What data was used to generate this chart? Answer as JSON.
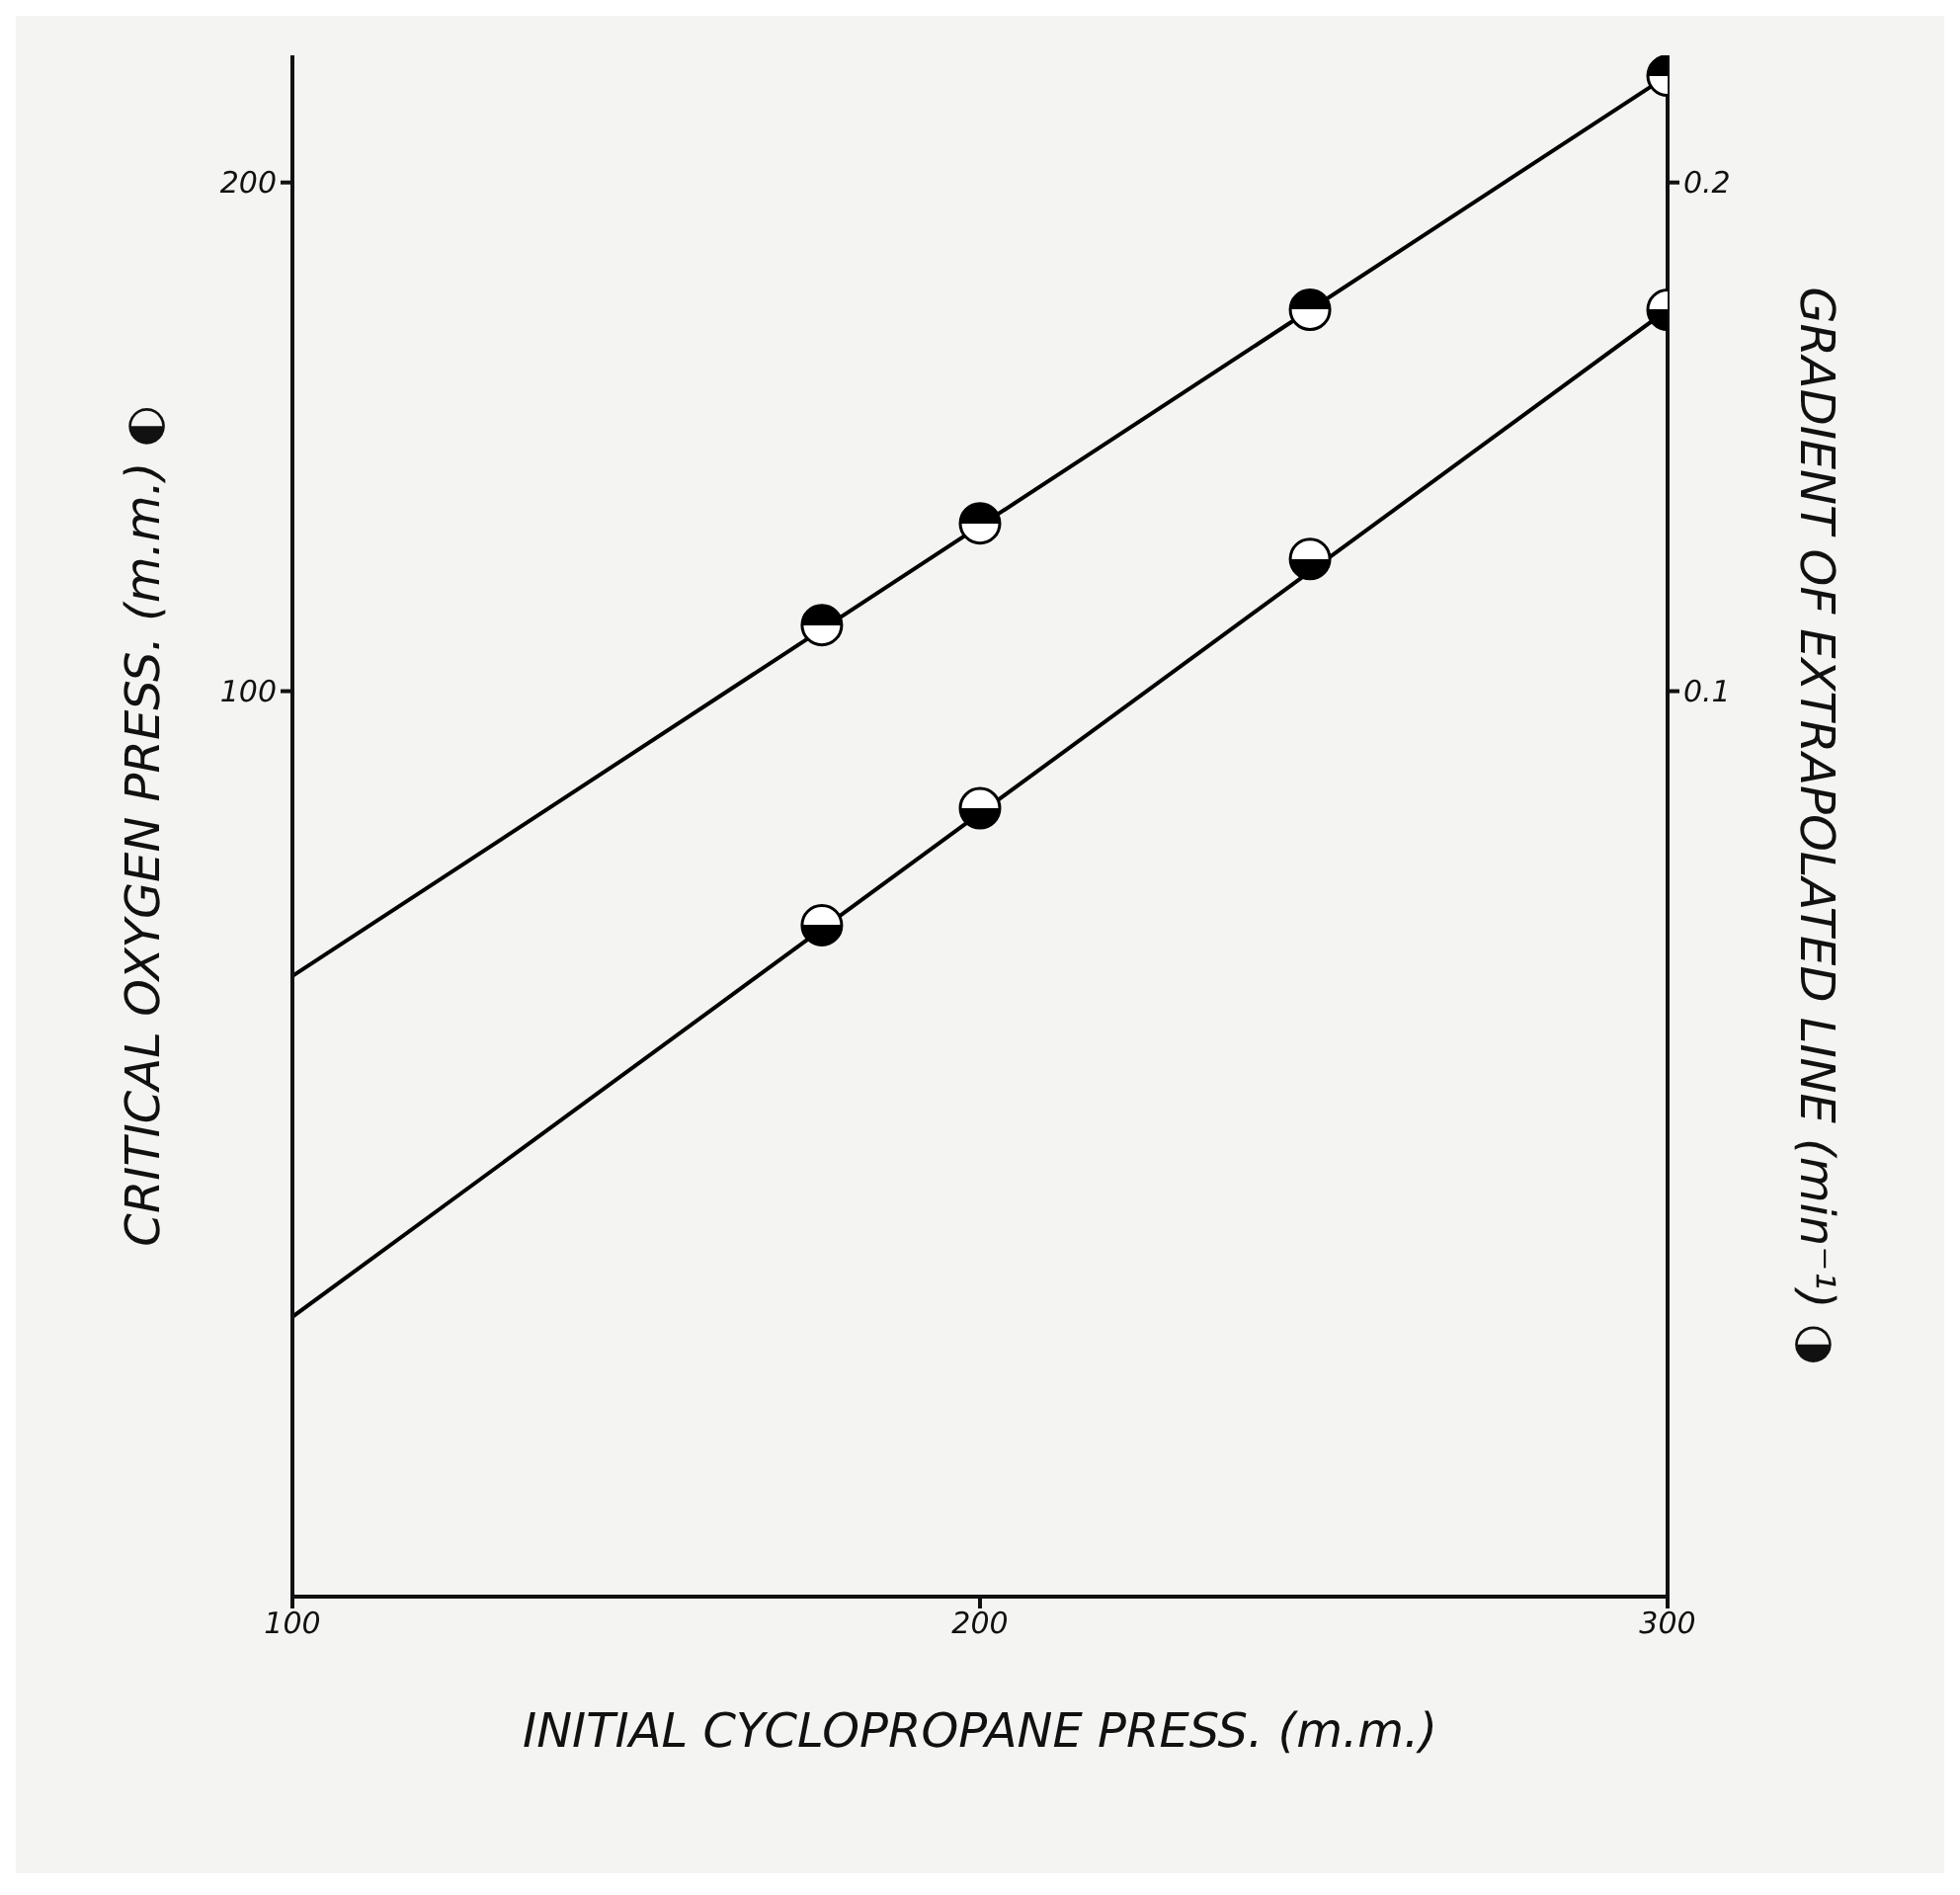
{
  "chart_data": {
    "type": "scatter",
    "xlabel": "INITIAL CYCLOPROPANE PRESS. (m.m.)",
    "ylabel": "CRITICAL OXYGEN PRESS. (m.m.) ◐",
    "y2label": "GRADIENT OF EXTRAPOLATED LINE (min⁻¹) ◑",
    "xlim": [
      100,
      300
    ],
    "xticks": [
      100,
      200,
      300
    ],
    "ylim": [
      -78,
      225
    ],
    "yticks": [
      100,
      200
    ],
    "y2lim": [
      -0.078,
      0.225
    ],
    "y2ticks": [
      0.1,
      0.2
    ],
    "marker": "circle",
    "line_style": "solid",
    "series": [
      {
        "color": "#000000",
        "x": [
          177,
          200,
          248,
          300
        ],
        "values": [
          113,
          133,
          175,
          221
        ]
      },
      {
        "color": "#000000",
        "axis": "y2",
        "x": [
          177,
          200,
          248,
          300
        ],
        "values": [
          0.054,
          0.077,
          0.126,
          0.175
        ]
      },
      {
        "type": "line",
        "marker": "none",
        "color": "#000000",
        "x": [
          100,
          300
        ],
        "values": [
          44,
          221
        ]
      },
      {
        "type": "line",
        "marker": "none",
        "color": "#000000",
        "axis": "y2",
        "x": [
          100,
          300
        ],
        "values": [
          -0.023,
          0.175
        ]
      }
    ]
  }
}
